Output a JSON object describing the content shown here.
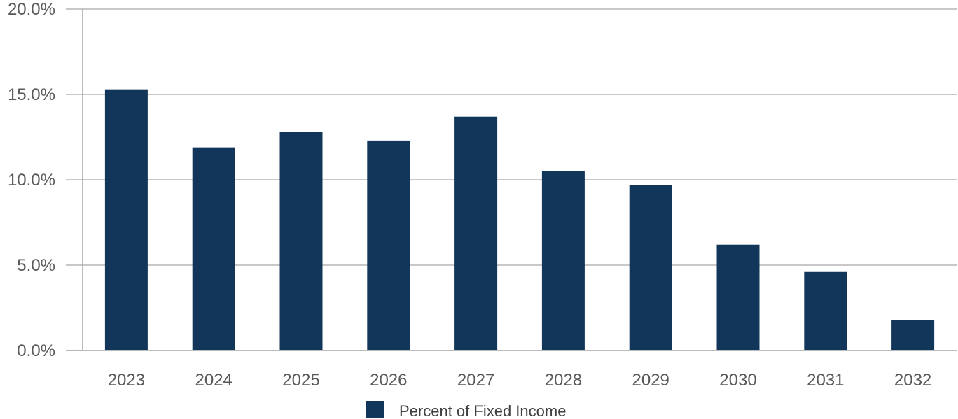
{
  "chart_data": {
    "type": "bar",
    "categories": [
      "2023",
      "2024",
      "2025",
      "2026",
      "2027",
      "2028",
      "2029",
      "2030",
      "2031",
      "2032"
    ],
    "series": [
      {
        "name": "Percent of Fixed Income",
        "values": [
          15.3,
          11.9,
          12.8,
          12.3,
          13.7,
          10.5,
          9.7,
          6.2,
          4.6,
          1.8
        ]
      }
    ],
    "y_ticks": [
      "0.0%",
      "5.0%",
      "10.0%",
      "15.0%",
      "20.0%"
    ],
    "ylim": [
      0,
      20
    ],
    "ytick_step": 5,
    "title": "",
    "xlabel": "",
    "ylabel": "",
    "grid": true,
    "legend_position": "bottom-center",
    "colors": {
      "bar": "#12365A",
      "grid": "#A6A6A6",
      "axis": "#A6A6A6",
      "text": "#595959"
    }
  }
}
